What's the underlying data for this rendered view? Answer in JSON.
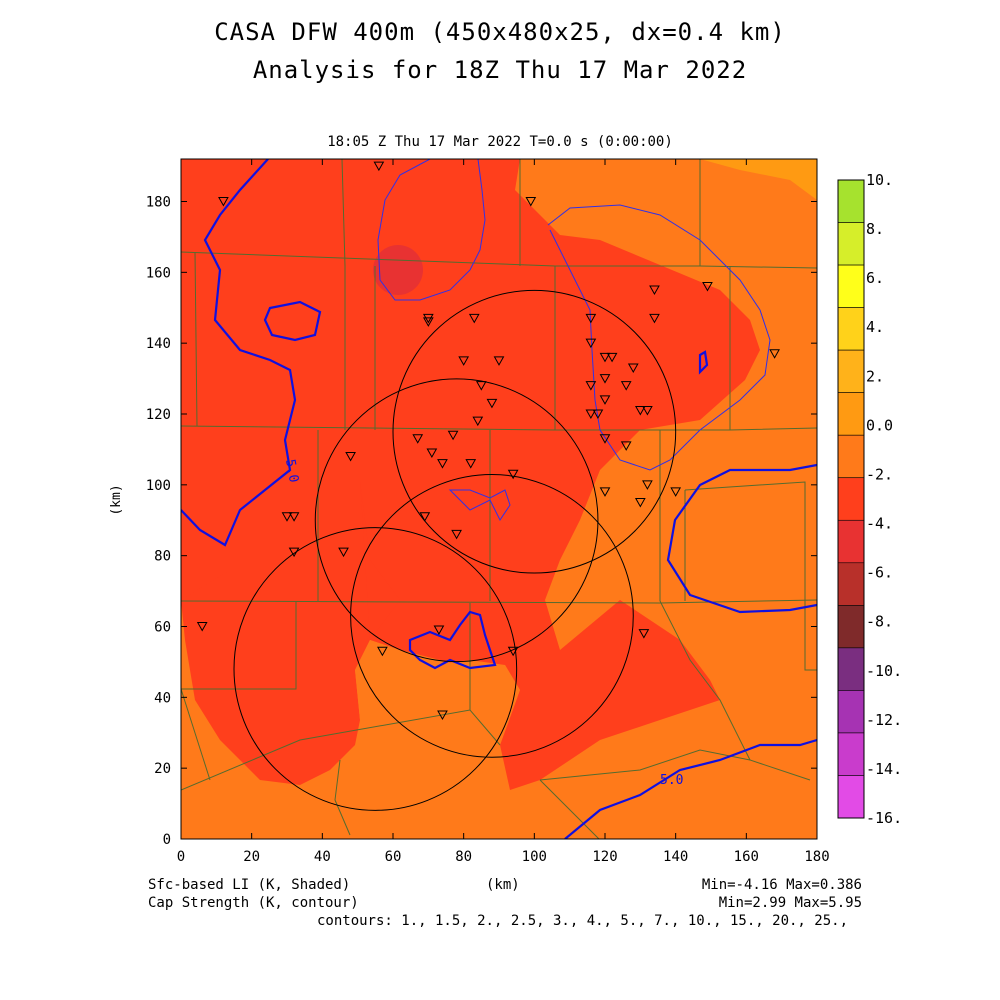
{
  "title": {
    "line1": "CASA DFW 400m (450x480x25, dx=0.4 km)",
    "line2": "Analysis for 18Z Thu 17 Mar 2022"
  },
  "subtitle": "18:05 Z Thu 17 Mar 2022    T=0.0 s (0:00:00)",
  "axes": {
    "x_label": "(km)",
    "y_label": "(km)",
    "x_ticks": [
      "0",
      "20",
      "40",
      "60",
      "80",
      "100",
      "120",
      "140",
      "160",
      "180"
    ],
    "y_ticks": [
      "0",
      "20",
      "40",
      "60",
      "80",
      "100",
      "120",
      "140",
      "160",
      "180"
    ],
    "x_range": [
      0,
      180
    ],
    "y_range": [
      0,
      192
    ]
  },
  "colorbar": {
    "labels": [
      "10.",
      "8.",
      "6.",
      "4.",
      "2.",
      "0.0",
      "-2.",
      "-4.",
      "-6.",
      "-8.",
      "-10.",
      "-12.",
      "-14.",
      "-16."
    ],
    "colors": [
      "#a6e22e",
      "#d6ee2a",
      "#ffff1a",
      "#ffd21a",
      "#ffb21a",
      "#ff9a12",
      "#ff7a1a",
      "#ff3f1c",
      "#e83232",
      "#b8302a",
      "#7f2a2a",
      "#7a2e80",
      "#a633b3",
      "#c93ccc",
      "#e24be6"
    ]
  },
  "contour_labels": [
    "5.0",
    "5.0"
  ],
  "footer": {
    "left1": "Sfc-based LI (K, Shaded)",
    "left2": "Cap Strength (K, contour)",
    "center": "(km)",
    "right1": "Min=-4.16 Max=0.386",
    "right2": "Min=2.99 Max=5.95",
    "contours": "contours: 1., 1.5, 2., 2.5, 3., 4., 5., 7., 10., 15., 20., 25.,"
  },
  "colors": {
    "background_field": "#ff7a1a",
    "low_li_field": "#ff3f1c",
    "cap_contour": "#1010e0",
    "county_lines": "#556b2f"
  },
  "stations": [
    [
      12,
      180
    ],
    [
      56,
      190
    ],
    [
      99,
      180
    ],
    [
      70,
      146
    ],
    [
      70,
      147
    ],
    [
      83,
      147
    ],
    [
      90,
      135
    ],
    [
      80,
      135
    ],
    [
      85,
      128
    ],
    [
      88,
      123
    ],
    [
      84,
      118
    ],
    [
      67,
      113
    ],
    [
      71,
      109
    ],
    [
      74,
      106
    ],
    [
      77,
      114
    ],
    [
      82,
      106
    ],
    [
      94,
      103
    ],
    [
      69,
      91
    ],
    [
      78,
      86
    ],
    [
      48,
      108
    ],
    [
      30,
      91
    ],
    [
      32,
      91
    ],
    [
      32,
      81
    ],
    [
      46,
      81
    ],
    [
      6,
      60
    ],
    [
      57,
      53
    ],
    [
      73,
      59
    ],
    [
      94,
      53
    ],
    [
      74,
      35
    ],
    [
      116,
      147
    ],
    [
      116,
      140
    ],
    [
      116,
      128
    ],
    [
      118,
      120
    ],
    [
      120,
      136
    ],
    [
      122,
      136
    ],
    [
      120,
      130
    ],
    [
      120,
      124
    ],
    [
      126,
      128
    ],
    [
      128,
      133
    ],
    [
      130,
      121
    ],
    [
      132,
      121
    ],
    [
      134,
      155
    ],
    [
      134,
      147
    ],
    [
      149,
      156
    ],
    [
      168,
      137
    ],
    [
      116,
      120
    ],
    [
      126,
      111
    ],
    [
      120,
      113
    ],
    [
      120,
      98
    ],
    [
      130,
      95
    ],
    [
      132,
      100
    ],
    [
      140,
      98
    ],
    [
      131,
      58
    ]
  ],
  "radar_circles": [
    [
      55,
      48,
      40
    ],
    [
      100,
      115,
      40
    ],
    [
      78,
      90,
      40
    ],
    [
      88,
      63,
      40
    ]
  ]
}
